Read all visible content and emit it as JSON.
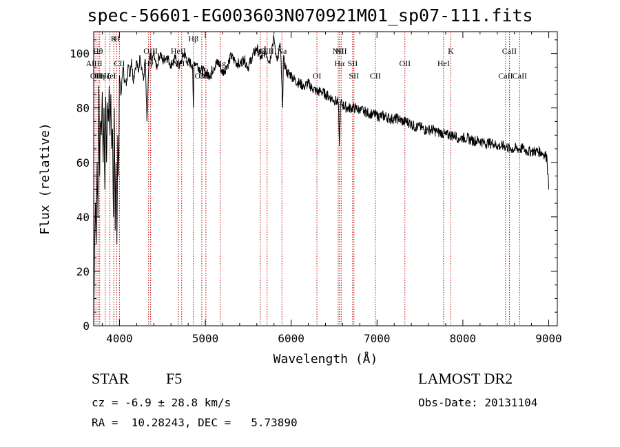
{
  "header": {
    "title": "spec-56601-EG003603N070921M01_sp07-111.fits"
  },
  "info": {
    "object_class": "STAR",
    "subclass": "F5",
    "survey": "LAMOST DR2",
    "cz": "cz = -6.9 ± 28.8 km/s",
    "obs_date": "Obs-Date: 20131104",
    "radec": "RA =  10.28243, DEC =   5.73890"
  },
  "colors": {
    "spectrum": "#000000",
    "line_marker": "#c00000",
    "axes": "#000000"
  },
  "chart_data": {
    "type": "line",
    "title": "spec-56601-EG003603N070921M01_sp07-111.fits",
    "xlabel": "Wavelength (Å)",
    "ylabel": "Flux (relative)",
    "xlim": [
      3700,
      9100
    ],
    "ylim": [
      0,
      108
    ],
    "xticks": [
      4000,
      5000,
      6000,
      7000,
      8000,
      9000
    ],
    "yticks": [
      0,
      20,
      40,
      60,
      80,
      100
    ],
    "grid": false,
    "series": [
      {
        "x": [
          3700,
          3710,
          3720,
          3730,
          3740,
          3750,
          3760,
          3770,
          3780,
          3790,
          3800,
          3810,
          3820,
          3830,
          3840,
          3850,
          3860,
          3870,
          3880,
          3890,
          3900,
          3910,
          3920,
          3930,
          3940,
          3950,
          3960,
          3970,
          3980,
          3990,
          4000,
          4020,
          4040,
          4060,
          4080,
          4100,
          4120,
          4140,
          4160,
          4180,
          4200,
          4220,
          4240,
          4260,
          4280,
          4300,
          4320,
          4340,
          4360,
          4380,
          4400,
          4420,
          4440,
          4460,
          4480,
          4500,
          4550,
          4600,
          4650,
          4700,
          4750,
          4800,
          4850,
          4861,
          4870,
          4900,
          4950,
          5000,
          5050,
          5100,
          5150,
          5200,
          5250,
          5300,
          5350,
          5400,
          5450,
          5500,
          5550,
          5600,
          5650,
          5700,
          5750,
          5780,
          5800,
          5820,
          5850,
          5870,
          5880,
          5890,
          5900,
          5910,
          5950,
          6000,
          6050,
          6100,
          6150,
          6200,
          6250,
          6300,
          6350,
          6400,
          6450,
          6500,
          6550,
          6563,
          6575,
          6600,
          6650,
          6700,
          6750,
          6800,
          6850,
          6900,
          6950,
          7000,
          7050,
          7100,
          7150,
          7200,
          7250,
          7300,
          7350,
          7400,
          7450,
          7500,
          7550,
          7600,
          7650,
          7700,
          7750,
          7800,
          7850,
          7900,
          7950,
          8000,
          8050,
          8100,
          8150,
          8200,
          8250,
          8300,
          8350,
          8400,
          8450,
          8500,
          8550,
          8600,
          8650,
          8700,
          8750,
          8800,
          8850,
          8900,
          8950,
          8980,
          9000
        ],
        "y": [
          2,
          28,
          45,
          30,
          60,
          40,
          88,
          55,
          75,
          70,
          86,
          60,
          80,
          50,
          84,
          60,
          82,
          75,
          88,
          70,
          85,
          65,
          72,
          40,
          80,
          35,
          60,
          30,
          70,
          55,
          92,
          85,
          95,
          90,
          88,
          96,
          92,
          98,
          90,
          94,
          97,
          93,
          99,
          95,
          90,
          98,
          75,
          94,
          100,
          96,
          101,
          97,
          95,
          99,
          100,
          97,
          99,
          96,
          98,
          95,
          100,
          97,
          96,
          80,
          97,
          96,
          94,
          93,
          92,
          95,
          97,
          93,
          95,
          99,
          97,
          96,
          98,
          95,
          99,
          102,
          98,
          101,
          97,
          103,
          106,
          100,
          98,
          104,
          99,
          90,
          80,
          98,
          93,
          92,
          90,
          89,
          88,
          89,
          87,
          86,
          86,
          85,
          84,
          83,
          82,
          66,
          82,
          81,
          80,
          80,
          80,
          79,
          79,
          78,
          78,
          77,
          77,
          77,
          76,
          76,
          76,
          75,
          75,
          74,
          73,
          73,
          72,
          72,
          72,
          71,
          71,
          70,
          70,
          70,
          69,
          69,
          69,
          68,
          68,
          68,
          67,
          67,
          67,
          66,
          66,
          66,
          65,
          65,
          65,
          65,
          64,
          64,
          64,
          64,
          63,
          62,
          50
        ]
      }
    ],
    "line_markers": [
      {
        "wavelength": 3705,
        "label": "AlIII",
        "row": 2
      },
      {
        "wavelength": 3726,
        "label": "OII",
        "row": 3
      },
      {
        "wavelength": 3750,
        "label": "Hθ",
        "row": 1
      },
      {
        "wavelength": 3770,
        "label": "Hη",
        "row": 3
      },
      {
        "wavelength": 3835,
        "label": "Hζ",
        "row": 3
      },
      {
        "wavelength": 3889,
        "label": "HeI",
        "row": 3
      },
      {
        "wavelength": 3934,
        "label": "K",
        "row": 0
      },
      {
        "wavelength": 3968,
        "label": "H",
        "row": 0
      },
      {
        "wavelength": 4000,
        "label": "CII",
        "row": 2
      },
      {
        "wavelength": 4340,
        "label": "Hγ",
        "row": 2
      },
      {
        "wavelength": 4363,
        "label": "OIII",
        "row": 1
      },
      {
        "wavelength": 4686,
        "label": "HeII",
        "row": 1
      },
      {
        "wavelength": 4725,
        "label": "NeIV",
        "row": 2
      },
      {
        "wavelength": 4861,
        "label": "Hβ",
        "row": 0
      },
      {
        "wavelength": 4959,
        "label": "OIII",
        "row": 3
      },
      {
        "wavelength": 5007,
        "label": "OIII",
        "row": 3
      },
      {
        "wavelength": 5175,
        "label": "Mg",
        "row": 2
      },
      {
        "wavelength": 5640,
        "label": "Mg",
        "row": 1
      },
      {
        "wavelength": 5720,
        "label": "CIII",
        "row": 1
      },
      {
        "wavelength": 5893,
        "label": "Na",
        "row": 1
      },
      {
        "wavelength": 6300,
        "label": "OI",
        "row": 3
      },
      {
        "wavelength": 6548,
        "label": "NII",
        "row": 1
      },
      {
        "wavelength": 6563,
        "label": "Hα",
        "row": 2
      },
      {
        "wavelength": 6583,
        "label": "NII",
        "row": 1
      },
      {
        "wavelength": 6716,
        "label": "SII",
        "row": 2
      },
      {
        "wavelength": 6731,
        "label": "SII",
        "row": 3
      },
      {
        "wavelength": 6980,
        "label": "CII",
        "row": 3
      },
      {
        "wavelength": 7325,
        "label": "OII",
        "row": 2
      },
      {
        "wavelength": 7775,
        "label": "HeI",
        "row": 2
      },
      {
        "wavelength": 7860,
        "label": "K",
        "row": 1
      },
      {
        "wavelength": 8498,
        "label": "CaII",
        "row": 3
      },
      {
        "wavelength": 8542,
        "label": "CaII",
        "row": 1
      },
      {
        "wavelength": 8662,
        "label": "CaII",
        "row": 3
      }
    ]
  }
}
